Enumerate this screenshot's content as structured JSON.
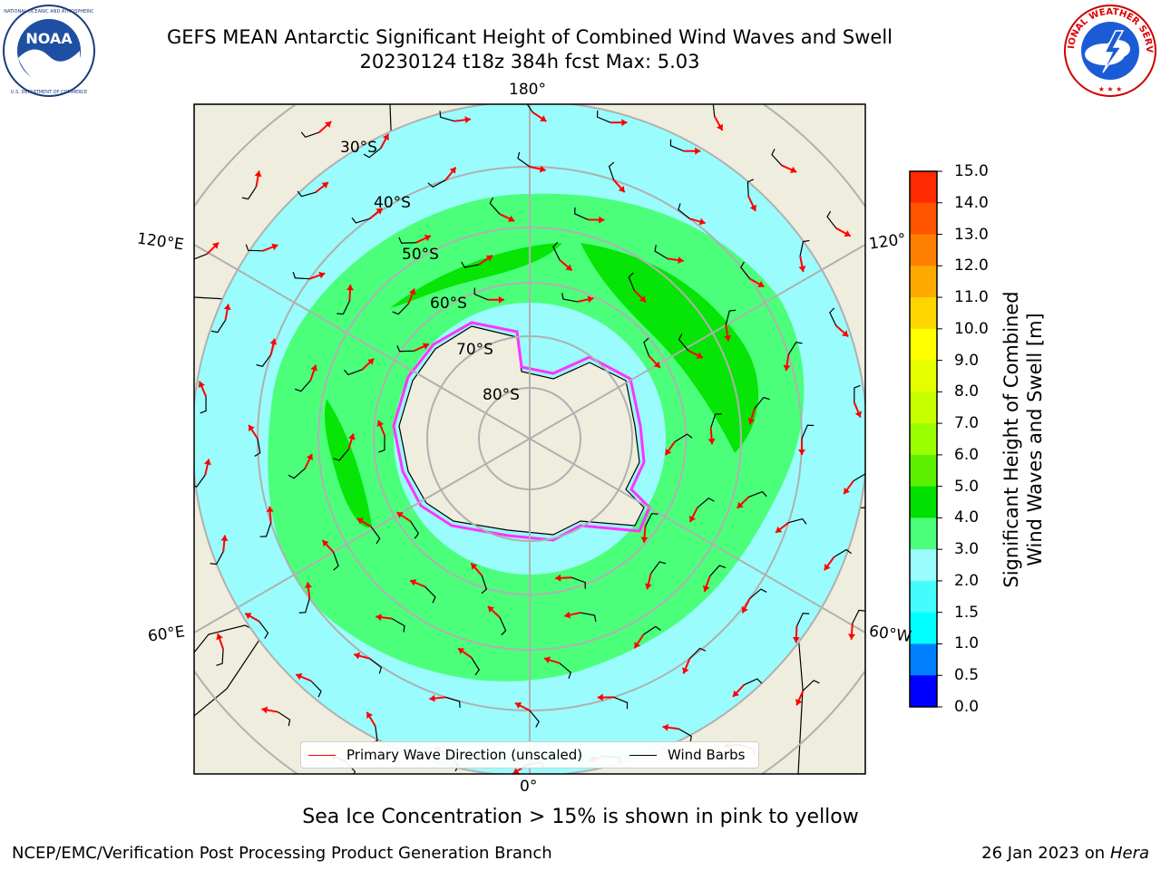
{
  "title": {
    "line1": "GEFS MEAN Antarctic Significant Height of Combined Wind Waves and Swell",
    "line2": "20230124 t18z 384h fcst   Max: 5.03"
  },
  "logos": {
    "left": {
      "name": "noaa-logo",
      "text": "NOAA",
      "ring_text": "NATIONAL OCEANIC AND ATMOSPHERIC ADMINISTRATION · U.S. DEPARTMENT OF COMMERCE"
    },
    "right": {
      "name": "nws-logo",
      "ring_text": "NATIONAL WEATHER SERVICE"
    }
  },
  "map": {
    "projection": "south-polar-stereographic",
    "lon_labels": {
      "top": "180°",
      "left_upper": "120°E",
      "right_upper": "120°",
      "left_lower": "60°E",
      "right_lower": "60°W",
      "bottom": "0°"
    },
    "lat_labels": [
      "30°S",
      "40°S",
      "50°S",
      "60°S",
      "70°S",
      "80°S"
    ],
    "colors": {
      "land": "#efedde",
      "ocean_low": "#9afcfc",
      "ocean_mid": "#4cff7b",
      "ocean_high": "#06e506",
      "sea_ice": "#ff33ff",
      "arrow": "#ff0000",
      "barb": "#000000"
    }
  },
  "colorbar": {
    "label_line1": "Significant Height of Combined",
    "label_line2": "Wind Waves and Swell [m]",
    "ticks": [
      "15.0",
      "14.0",
      "13.0",
      "12.0",
      "11.0",
      "10.0",
      "9.0",
      "8.0",
      "7.0",
      "6.0",
      "5.0",
      "4.0",
      "3.0",
      "2.0",
      "1.5",
      "1.0",
      "0.5",
      "0.0"
    ],
    "colors": [
      "#ff0000",
      "#ff2a00",
      "#ff5500",
      "#ff8000",
      "#ffaa00",
      "#ffd500",
      "#ffff00",
      "#e5ff00",
      "#c6ff00",
      "#9aff00",
      "#5cf000",
      "#00e000",
      "#4cff7b",
      "#9afcfc",
      "#45fcfc",
      "#00ffff",
      "#0080ff",
      "#0000ff"
    ]
  },
  "legend": {
    "wave_direction": "Primary Wave Direction (unscaled)",
    "wind_barbs": "Wind Barbs"
  },
  "caption": "Sea Ice Concentration > 15% is shown in pink to yellow",
  "footer": {
    "left": "NCEP/EMC/Verification Post Processing Product Generation Branch",
    "right_date": "26 Jan 2023 on",
    "right_machine": "Hera"
  }
}
